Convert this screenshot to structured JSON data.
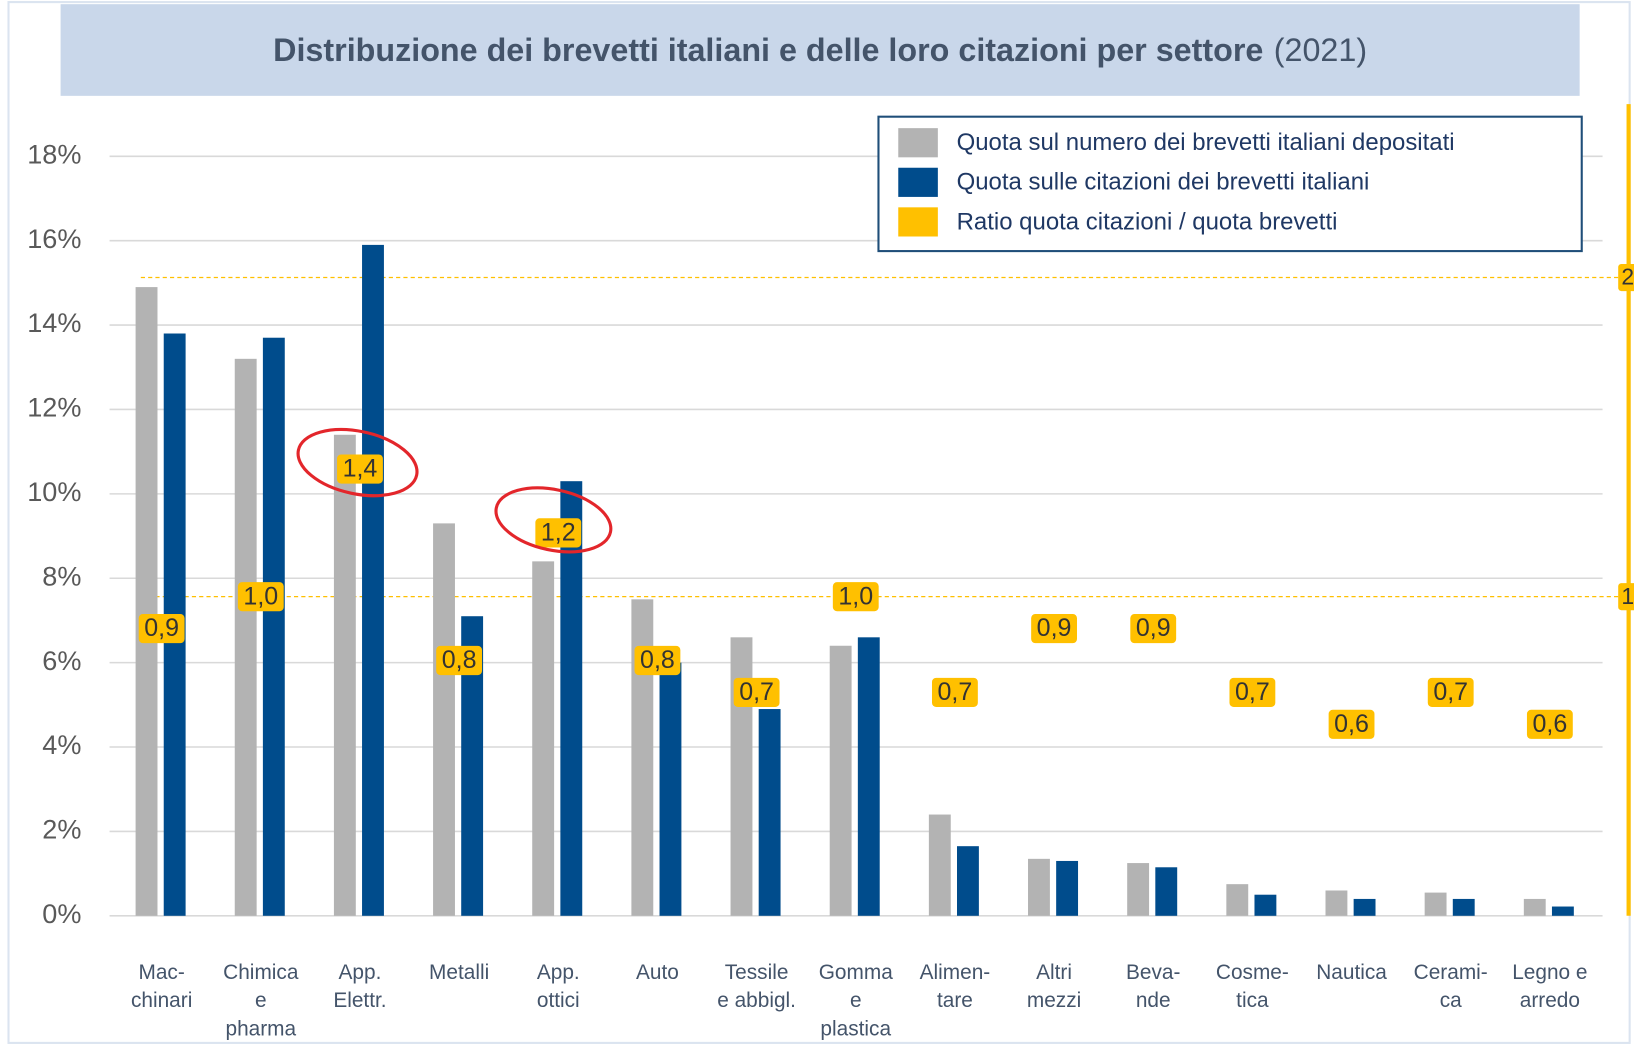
{
  "chart_data": {
    "type": "bar",
    "title": "Distribuzione dei brevetti italiani e delle loro citazioni per settore",
    "subtitle": "(2021)",
    "categories": [
      "Mac-\nchinari",
      "Chimica\ne\npharma",
      "App.\nElettr.",
      "Metalli",
      "App.\nottici",
      "Auto",
      "Tessile\ne abbigl.",
      "Gomma\ne\nplastica",
      "Alimen-\ntare",
      "Altri\nmezzi",
      "Beva-\nnde",
      "Cosme-\ntica",
      "Nautica",
      "Cerami-\nca",
      "Legno e\narredo"
    ],
    "series": [
      {
        "name": "Quota sul numero dei brevetti italiani depositati",
        "color": "#b3b3b3",
        "values": [
          14.9,
          13.2,
          11.4,
          9.3,
          8.4,
          7.5,
          6.6,
          6.4,
          2.4,
          1.35,
          1.25,
          0.75,
          0.6,
          0.55,
          0.4
        ]
      },
      {
        "name": "Quota sulle citazioni dei brevetti italiani",
        "color": "#004c8c",
        "values": [
          13.8,
          13.7,
          15.9,
          7.1,
          10.3,
          6.0,
          4.9,
          6.6,
          1.65,
          1.3,
          1.15,
          0.5,
          0.4,
          0.4,
          0.22
        ]
      },
      {
        "name": "Ratio quota citazioni / quota brevetti",
        "color": "#ffc000",
        "axis": "y2",
        "values": [
          0.9,
          1.0,
          1.4,
          0.8,
          1.2,
          0.8,
          0.7,
          1.0,
          0.7,
          0.9,
          0.9,
          0.7,
          0.6,
          0.7,
          0.6
        ],
        "value_labels": [
          "0,9",
          "1,0",
          "1,4",
          "0,8",
          "1,2",
          "0,8",
          "0,7",
          "1,0",
          "0,7",
          "0,9",
          "0,9",
          "0,7",
          "0,6",
          "0,7",
          "0,6"
        ]
      }
    ],
    "ylim": [
      0,
      18
    ],
    "yticks": [
      {
        "value": 0,
        "label": "0%"
      },
      {
        "value": 2,
        "label": "2%"
      },
      {
        "value": 4,
        "label": "4%"
      },
      {
        "value": 6,
        "label": "6%"
      },
      {
        "value": 8,
        "label": "8%"
      },
      {
        "value": 10,
        "label": "10%"
      },
      {
        "value": 12,
        "label": "12%"
      },
      {
        "value": 14,
        "label": "14%"
      },
      {
        "value": 16,
        "label": "16%"
      },
      {
        "value": 18,
        "label": "18%"
      }
    ],
    "y2lim": [
      0,
      2.38
    ],
    "y2ticks": [
      1,
      2
    ],
    "grid": true,
    "legend": "top-right"
  }
}
